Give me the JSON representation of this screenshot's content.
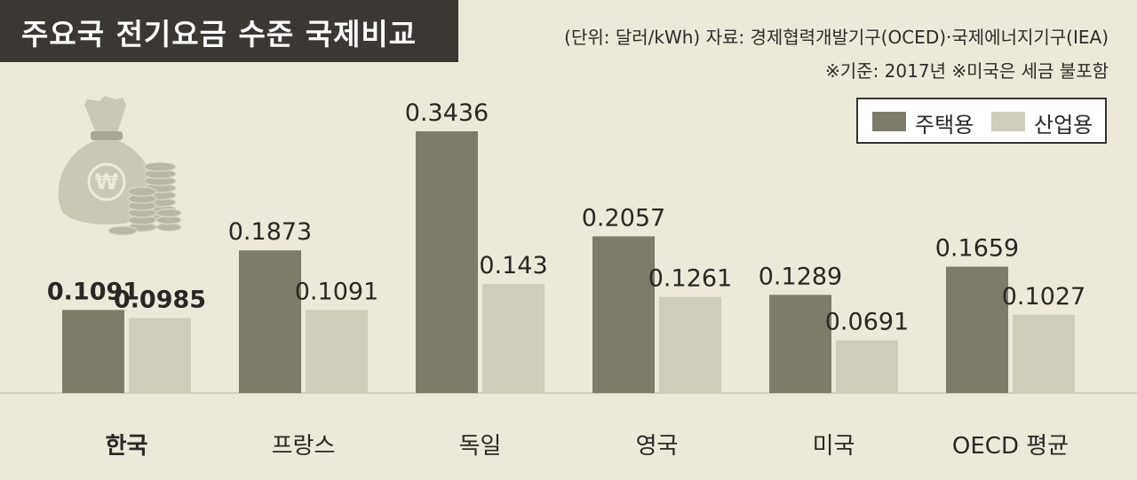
{
  "header": {
    "title": "주요국 전기요금 수준 국제비교",
    "unit_source": "(단위: 달러/kWh)   자료: 경제협력개발기구(OCED)·국제에너지기구(IEA)",
    "note": "※기준: 2017년   ※미국은 세금 불포함"
  },
  "legend": {
    "residential": "주택용",
    "industrial": "산업용"
  },
  "colors": {
    "residential": "#7d7b6a",
    "industrial": "#cecdbb",
    "background": "#ece9da",
    "title_bg": "#3b3733"
  },
  "illustration": "money-bag-with-won-sign-and-coins",
  "chart_data": {
    "type": "bar",
    "categories": [
      "한국",
      "프랑스",
      "독일",
      "영국",
      "미국",
      "OECD 평균"
    ],
    "series": [
      {
        "name": "주택용",
        "values": [
          0.1091,
          0.1873,
          0.3436,
          0.2057,
          0.1289,
          0.1659
        ],
        "labels": [
          "0.1091",
          "0.1873",
          "0.3436",
          "0.2057",
          "0.1289",
          "0.1659"
        ]
      },
      {
        "name": "산업용",
        "values": [
          0.0985,
          0.1091,
          0.143,
          0.1261,
          0.0691,
          0.1027
        ],
        "labels": [
          "0.0985",
          "0.1091",
          "0.143",
          "0.1261",
          "0.0691",
          "0.1027"
        ]
      }
    ],
    "title": "주요국 전기요금 수준 국제비교",
    "ylim": [
      0,
      0.3436
    ],
    "highlight_category": "한국",
    "grid": false,
    "legend_position": "top-right"
  }
}
